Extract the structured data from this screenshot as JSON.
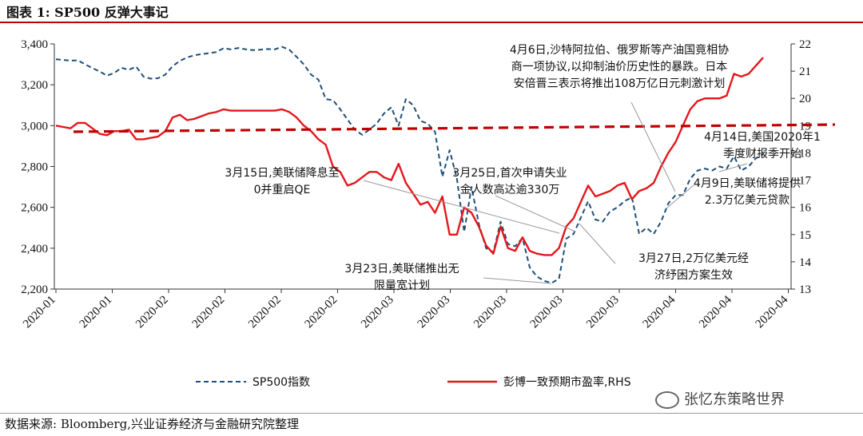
{
  "header": {
    "title": "图表 1:  SP500 反弹大事记"
  },
  "footer": {
    "source": "数据来源:  Bloomberg,兴业证券经济与金融研究院整理"
  },
  "watermark": {
    "text": "张忆东策略世界"
  },
  "colors": {
    "sp500": "#1f4e79",
    "pe": "#e3171c",
    "dashed_mean": "#c00000"
  },
  "chart_data": {
    "type": "line",
    "title": "",
    "xlabel": "",
    "ylabel": "",
    "ylim": [
      2200,
      3400
    ],
    "y2lim": [
      13,
      22
    ],
    "grid": false,
    "legend_position": "bottom",
    "x_tick_labels": [
      "2020-01",
      "2020-01",
      "2020-02",
      "2020-02",
      "2020-02",
      "2020-02",
      "2020-03",
      "2020-03",
      "2020-03",
      "2020-03",
      "2020-03",
      "2020-04",
      "2020-04",
      "2020-04"
    ],
    "y_ticks": [
      "2,200",
      "2,400",
      "2,600",
      "2,800",
      "3,000",
      "3,200",
      "3,400"
    ],
    "y2_ticks": [
      "13",
      "14",
      "15",
      "16",
      "17",
      "18",
      "19",
      "20",
      "21",
      "22"
    ],
    "series": [
      {
        "name": "SP500指数",
        "axis": "left",
        "style": "dashed",
        "values": [
          3325,
          3322,
          3318,
          3320,
          3300,
          3282,
          3265,
          3245,
          3258,
          3283,
          3273,
          3289,
          3240,
          3230,
          3232,
          3250,
          3291,
          3317,
          3334,
          3345,
          3350,
          3355,
          3360,
          3379,
          3373,
          3380,
          3374,
          3370,
          3372,
          3375,
          3373,
          3386,
          3372,
          3337,
          3300,
          3250,
          3225,
          3130,
          3125,
          3080,
          3030,
          2980,
          2955,
          2980,
          3010,
          3060,
          3090,
          3000,
          3130,
          3100,
          3023,
          3010,
          2970,
          2750,
          2880,
          2740,
          2480,
          2700,
          2520,
          2400,
          2380,
          2530,
          2420,
          2410,
          2450,
          2305,
          2260,
          2240,
          2230,
          2250,
          2447,
          2470,
          2550,
          2630,
          2540,
          2530,
          2580,
          2600,
          2630,
          2650,
          2470,
          2500,
          2470,
          2530,
          2620,
          2660,
          2660,
          2740,
          2780,
          2790,
          2780,
          2800,
          2790,
          2850,
          2780,
          2800,
          2840,
          2860
        ]
      },
      {
        "name": "彭博一致预期市盈率,RHS",
        "axis": "right",
        "style": "solid",
        "values": [
          19.0,
          18.95,
          18.9,
          19.1,
          19.1,
          18.9,
          18.7,
          18.65,
          18.8,
          18.8,
          18.85,
          18.5,
          18.5,
          18.55,
          18.6,
          18.8,
          19.3,
          19.4,
          19.2,
          19.25,
          19.35,
          19.45,
          19.5,
          19.6,
          19.55,
          19.55,
          19.55,
          19.55,
          19.55,
          19.55,
          19.55,
          19.6,
          19.5,
          19.3,
          19.0,
          18.8,
          18.5,
          18.3,
          17.5,
          17.3,
          16.8,
          16.9,
          17.1,
          17.3,
          17.3,
          17.1,
          17.0,
          17.6,
          16.9,
          16.5,
          16.1,
          16.2,
          15.8,
          16.4,
          15.0,
          15.0,
          16.0,
          15.8,
          15.3,
          14.6,
          14.3,
          15.3,
          14.5,
          14.4,
          14.9,
          14.4,
          14.3,
          14.25,
          14.25,
          14.5,
          15.3,
          15.6,
          16.2,
          16.8,
          16.4,
          16.5,
          16.6,
          16.8,
          16.9,
          16.3,
          16.6,
          16.7,
          16.9,
          17.5,
          18.0,
          18.4,
          19.0,
          19.6,
          19.9,
          20.0,
          20.0,
          20.0,
          20.1,
          20.9,
          20.8,
          20.9,
          21.2,
          21.5
        ]
      }
    ],
    "mean_line": {
      "axis": "left",
      "y": 2970,
      "y_end": 3005,
      "style": "dashed"
    },
    "annotations": [
      {
        "lines": [
          "4月6日,沙特阿拉伯、俄罗斯等产油国竟相协",
          "商一项协议,以抑制油价历史性的暴跌。日本",
          "安倍晋三表示将推出108万亿日元刺激计划"
        ]
      },
      {
        "lines": [
          "4月14日,美国2020年1",
          "季度财报季开始"
        ]
      },
      {
        "lines": [
          "3月15日,美联储降息至",
          "0并重启QE"
        ]
      },
      {
        "lines": [
          "3月25日,首次申请失业",
          "金人数高达逾330万"
        ]
      },
      {
        "lines": [
          "4月9日,美联储将提供",
          "2.3万亿美元贷款"
        ]
      },
      {
        "lines": [
          "3月27日,2万亿美元经",
          "济纾困方案生效"
        ]
      },
      {
        "lines": [
          "3月23日,美联储推出无",
          "限量宽计划"
        ]
      }
    ]
  }
}
